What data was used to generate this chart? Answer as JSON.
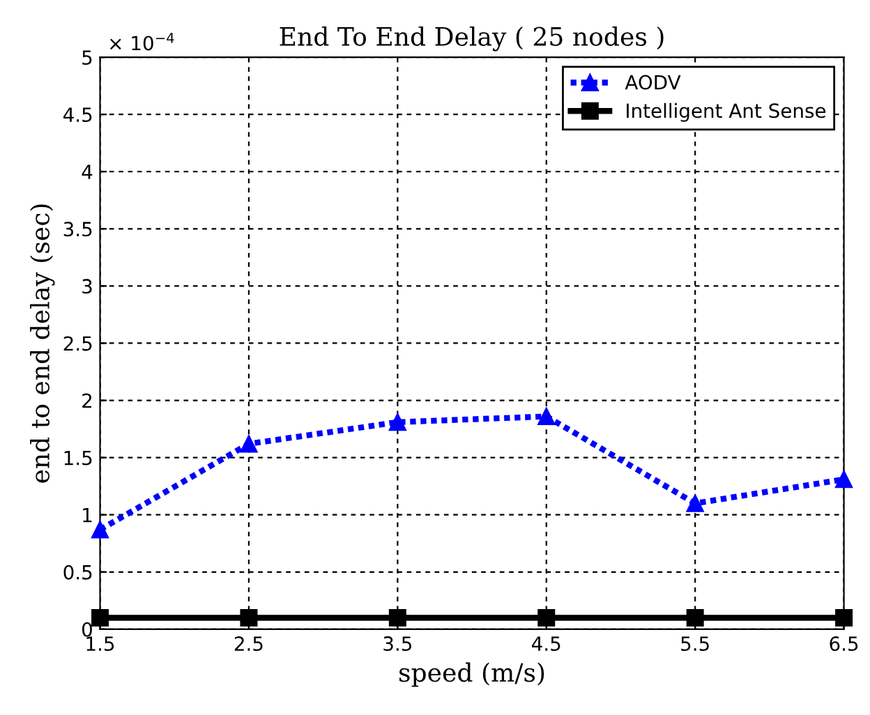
{
  "chart_data": {
    "type": "line",
    "title": "End To End Delay ( 25 nodes )",
    "xlabel": "speed (m/s)",
    "ylabel": "end to end delay (sec)",
    "x": [
      1.5,
      2.5,
      3.5,
      4.5,
      5.5,
      6.5
    ],
    "series": [
      {
        "name": "AODV",
        "color": "#0000ff",
        "values": [
          0.87,
          1.62,
          1.81,
          1.86,
          1.1,
          1.31
        ],
        "marker": "triangle",
        "line_style": "dotted"
      },
      {
        "name": "Intelligent Ant Sense",
        "color": "#000000",
        "values": [
          0.1,
          0.1,
          0.1,
          0.1,
          0.1,
          0.1
        ],
        "marker": "square",
        "line_style": "solid"
      }
    ],
    "xlim": [
      1.5,
      6.5
    ],
    "xticks": [
      1.5,
      2.5,
      3.5,
      4.5,
      5.5,
      6.5
    ],
    "ylim": [
      0,
      5
    ],
    "yticks": [
      0,
      0.5,
      1,
      1.5,
      2,
      2.5,
      3,
      3.5,
      4,
      4.5,
      5
    ],
    "annotations": [
      "× 10$^{−4}$"
    ],
    "grid": true,
    "legend": "top right"
  }
}
